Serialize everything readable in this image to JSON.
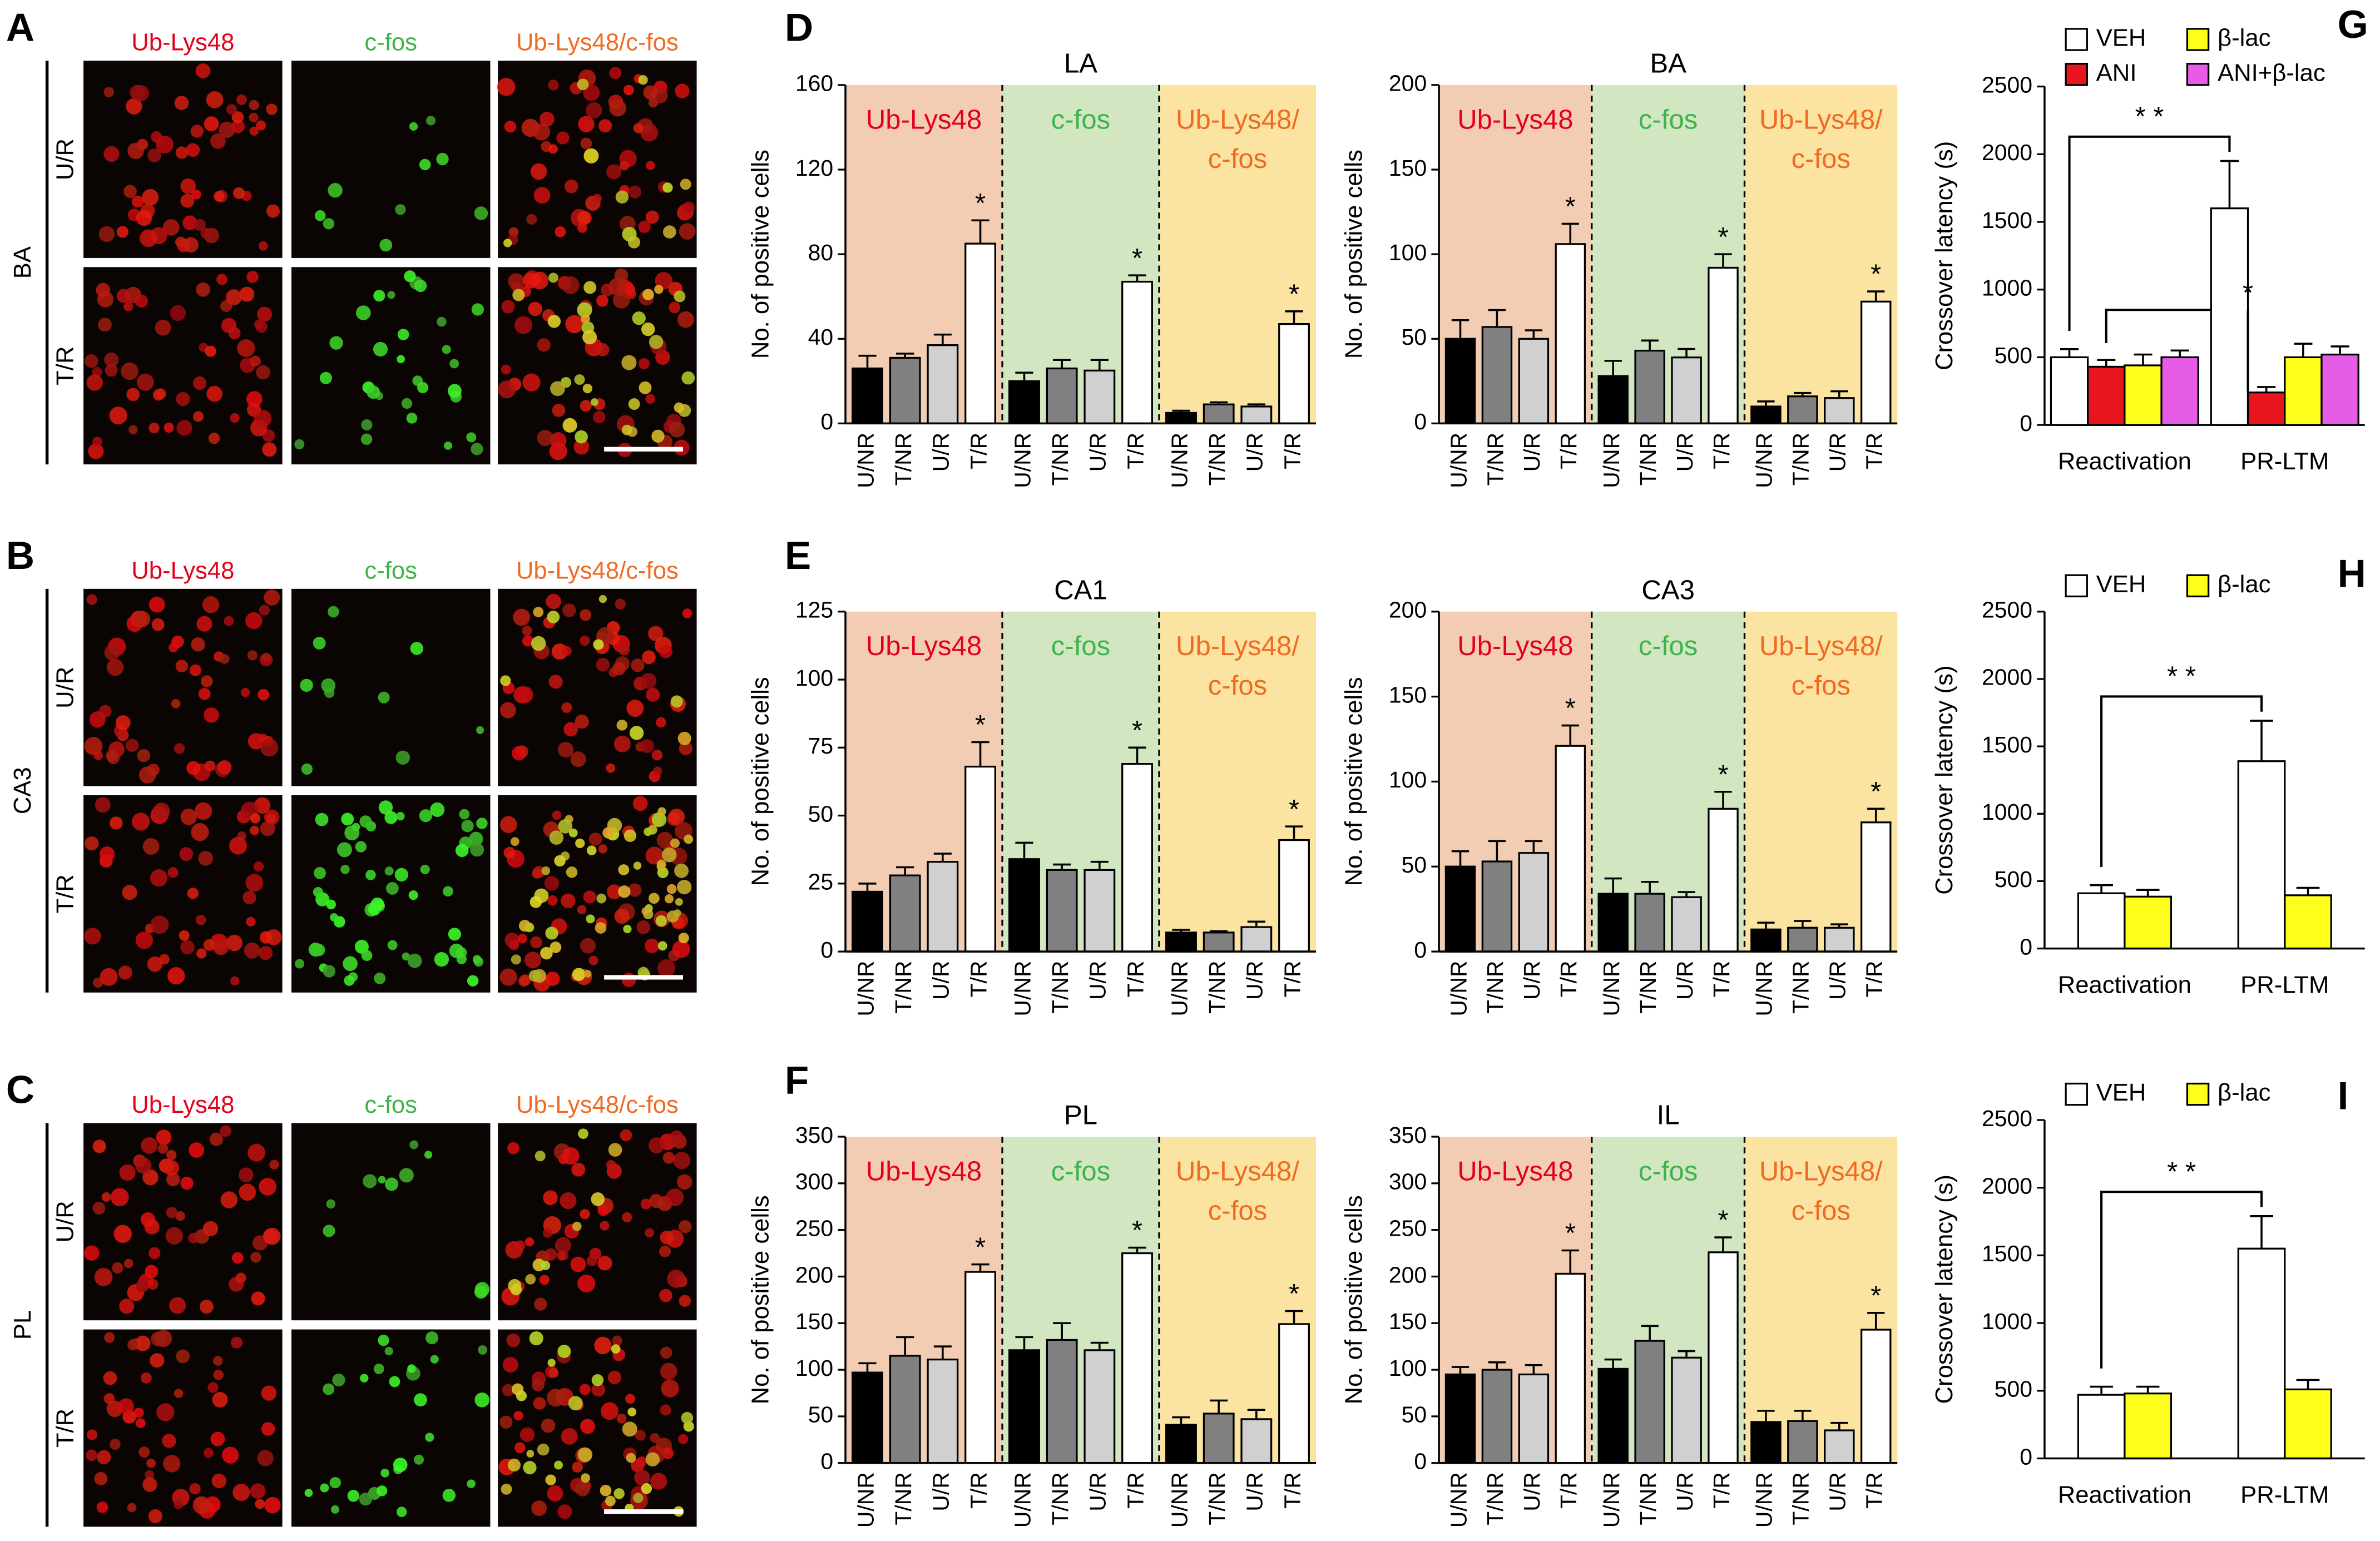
{
  "image_panels": [
    {
      "letter": "A",
      "region": "BA",
      "columns": [
        "Ub-Lys48",
        "c-fos",
        "Ub-Lys48/c-fos"
      ],
      "rows": [
        "U/R",
        "T/R"
      ]
    },
    {
      "letter": "B",
      "region": "CA3",
      "columns": [
        "Ub-Lys48",
        "c-fos",
        "Ub-Lys48/c-fos"
      ],
      "rows": [
        "U/R",
        "T/R"
      ]
    },
    {
      "letter": "C",
      "region": "PL",
      "columns": [
        "Ub-Lys48",
        "c-fos",
        "Ub-Lys48/c-fos"
      ],
      "rows": [
        "U/R",
        "T/R"
      ]
    }
  ],
  "chart_data": [
    {
      "type": "bar",
      "panel": "D",
      "title": "LA",
      "y_label": "No. of positive cells",
      "ylim": [
        0,
        160
      ],
      "yticks": [
        0,
        40,
        80,
        120,
        160
      ],
      "categories": [
        "U/NR",
        "T/NR",
        "U/R",
        "T/R"
      ],
      "bar_colors": [
        "#000000",
        "#808080",
        "#d0d0d0",
        "#ffffff"
      ],
      "groups": [
        {
          "name": [
            "Ub-Lys48"
          ],
          "color": "#e3001b",
          "background": "#f3cdb3",
          "values": [
            26,
            31,
            37,
            85
          ],
          "errors": [
            6,
            2,
            5,
            11
          ],
          "annotation": "*"
        },
        {
          "name": [
            "c-fos"
          ],
          "color": "#3cb44a",
          "background": "#d2e6c2",
          "values": [
            20,
            26,
            25,
            67
          ],
          "errors": [
            4,
            4,
            5,
            3
          ],
          "annotation": "*"
        },
        {
          "name": [
            "Ub-Lys48/",
            "c-fos"
          ],
          "color": "#f06a22",
          "background": "#fbe3a2",
          "values": [
            5,
            9,
            8,
            47
          ],
          "errors": [
            1,
            1,
            1,
            6
          ],
          "annotation": "*"
        }
      ]
    },
    {
      "type": "bar",
      "title": "BA",
      "y_label": "No. of positive cells",
      "ylim": [
        0,
        200
      ],
      "yticks": [
        0,
        50,
        100,
        150,
        200
      ],
      "categories": [
        "U/NR",
        "T/NR",
        "U/R",
        "T/R"
      ],
      "bar_colors": [
        "#000000",
        "#808080",
        "#d0d0d0",
        "#ffffff"
      ],
      "groups": [
        {
          "name": [
            "Ub-Lys48"
          ],
          "color": "#e3001b",
          "background": "#f3cdb3",
          "values": [
            50,
            57,
            50,
            106
          ],
          "errors": [
            11,
            10,
            5,
            12
          ],
          "annotation": "*"
        },
        {
          "name": [
            "c-fos"
          ],
          "color": "#3cb44a",
          "background": "#d2e6c2",
          "values": [
            28,
            43,
            39,
            92
          ],
          "errors": [
            9,
            6,
            5,
            8
          ],
          "annotation": "*"
        },
        {
          "name": [
            "Ub-Lys48/",
            "c-fos"
          ],
          "color": "#f06a22",
          "background": "#fbe3a2",
          "values": [
            10,
            16,
            15,
            72
          ],
          "errors": [
            3,
            2,
            4,
            6
          ],
          "annotation": "*"
        }
      ]
    },
    {
      "type": "bar",
      "panel": "E",
      "title": "CA1",
      "y_label": "No. of positive cells",
      "ylim": [
        0,
        125
      ],
      "yticks": [
        0,
        25,
        50,
        75,
        100,
        125
      ],
      "categories": [
        "U/NR",
        "T/NR",
        "U/R",
        "T/R"
      ],
      "bar_colors": [
        "#000000",
        "#808080",
        "#d0d0d0",
        "#ffffff"
      ],
      "groups": [
        {
          "name": [
            "Ub-Lys48"
          ],
          "color": "#e3001b",
          "background": "#f3cdb3",
          "values": [
            22,
            28,
            33,
            68
          ],
          "errors": [
            3,
            3,
            3,
            9
          ],
          "annotation": "*"
        },
        {
          "name": [
            "c-fos"
          ],
          "color": "#3cb44a",
          "background": "#d2e6c2",
          "values": [
            34,
            30,
            30,
            69
          ],
          "errors": [
            6,
            2,
            3,
            6
          ],
          "annotation": "*"
        },
        {
          "name": [
            "Ub-Lys48/",
            "c-fos"
          ],
          "color": "#f06a22",
          "background": "#fbe3a2",
          "values": [
            7,
            7,
            9,
            41
          ],
          "errors": [
            1,
            0.5,
            2,
            5
          ],
          "annotation": "*"
        }
      ]
    },
    {
      "type": "bar",
      "title": "CA3",
      "y_label": "No. of positive cells",
      "ylim": [
        0,
        200
      ],
      "yticks": [
        0,
        50,
        100,
        150,
        200
      ],
      "categories": [
        "U/NR",
        "T/NR",
        "U/R",
        "T/R"
      ],
      "bar_colors": [
        "#000000",
        "#808080",
        "#d0d0d0",
        "#ffffff"
      ],
      "groups": [
        {
          "name": [
            "Ub-Lys48"
          ],
          "color": "#e3001b",
          "background": "#f3cdb3",
          "values": [
            50,
            53,
            58,
            121
          ],
          "errors": [
            9,
            12,
            7,
            12
          ],
          "annotation": "*"
        },
        {
          "name": [
            "c-fos"
          ],
          "color": "#3cb44a",
          "background": "#d2e6c2",
          "values": [
            34,
            34,
            32,
            84
          ],
          "errors": [
            9,
            7,
            3,
            10
          ],
          "annotation": "*"
        },
        {
          "name": [
            "Ub-Lys48/",
            "c-fos"
          ],
          "color": "#f06a22",
          "background": "#fbe3a2",
          "values": [
            13,
            14,
            14,
            76
          ],
          "errors": [
            4,
            4,
            2,
            8
          ],
          "annotation": "*"
        }
      ]
    },
    {
      "type": "bar",
      "panel": "F",
      "title": "PL",
      "y_label": "No. of positive cells",
      "ylim": [
        0,
        350
      ],
      "yticks": [
        0,
        50,
        100,
        150,
        200,
        250,
        300,
        350
      ],
      "categories": [
        "U/NR",
        "T/NR",
        "U/R",
        "T/R"
      ],
      "bar_colors": [
        "#000000",
        "#808080",
        "#d0d0d0",
        "#ffffff"
      ],
      "groups": [
        {
          "name": [
            "Ub-Lys48"
          ],
          "color": "#e3001b",
          "background": "#f3cdb3",
          "values": [
            97,
            115,
            111,
            205
          ],
          "errors": [
            10,
            20,
            14,
            8
          ],
          "annotation": "*"
        },
        {
          "name": [
            "c-fos"
          ],
          "color": "#3cb44a",
          "background": "#d2e6c2",
          "values": [
            121,
            132,
            121,
            225
          ],
          "errors": [
            14,
            18,
            8,
            6
          ],
          "annotation": "*"
        },
        {
          "name": [
            "Ub-Lys48/",
            "c-fos"
          ],
          "color": "#f06a22",
          "background": "#fbe3a2",
          "values": [
            41,
            53,
            47,
            149
          ],
          "errors": [
            8,
            14,
            10,
            14
          ],
          "annotation": "*"
        }
      ]
    },
    {
      "type": "bar",
      "title": "IL",
      "y_label": "No. of positive cells",
      "ylim": [
        0,
        350
      ],
      "yticks": [
        0,
        50,
        100,
        150,
        200,
        250,
        300,
        350
      ],
      "categories": [
        "U/NR",
        "T/NR",
        "U/R",
        "T/R"
      ],
      "bar_colors": [
        "#000000",
        "#808080",
        "#d0d0d0",
        "#ffffff"
      ],
      "groups": [
        {
          "name": [
            "Ub-Lys48"
          ],
          "color": "#e3001b",
          "background": "#f3cdb3",
          "values": [
            95,
            100,
            95,
            203
          ],
          "errors": [
            8,
            8,
            10,
            25
          ],
          "annotation": "*"
        },
        {
          "name": [
            "c-fos"
          ],
          "color": "#3cb44a",
          "background": "#d2e6c2",
          "values": [
            101,
            131,
            113,
            226
          ],
          "errors": [
            10,
            16,
            7,
            16
          ],
          "annotation": "*"
        },
        {
          "name": [
            "Ub-Lys48/",
            "c-fos"
          ],
          "color": "#f06a22",
          "background": "#fbe3a2",
          "values": [
            44,
            45,
            35,
            143
          ],
          "errors": [
            12,
            11,
            8,
            18
          ],
          "annotation": "*"
        }
      ]
    },
    {
      "type": "grouped_bar",
      "panel": "G",
      "y_label": "Crossover latency (s)",
      "ylim": [
        0,
        2500
      ],
      "yticks": [
        0,
        500,
        1000,
        1500,
        2000,
        2500
      ],
      "categories": [
        "Reactivation",
        "PR-LTM"
      ],
      "series": [
        {
          "name": "VEH",
          "color": "#ffffff",
          "values": [
            500,
            1600
          ],
          "errors": [
            60,
            350
          ]
        },
        {
          "name": "ANI",
          "color": "#e8141e",
          "values": [
            430,
            240
          ],
          "errors": [
            50,
            40
          ]
        },
        {
          "name": "β-lac",
          "color": "#ffff1e",
          "values": [
            440,
            500
          ],
          "errors": [
            80,
            100
          ]
        },
        {
          "name": "ANI+β-lac",
          "color": "#e65ce6",
          "values": [
            500,
            520
          ],
          "errors": [
            50,
            60
          ]
        }
      ],
      "annotations": [
        "* *",
        "*"
      ]
    },
    {
      "type": "grouped_bar",
      "panel": "H",
      "y_label": "Crossover latency (s)",
      "ylim": [
        0,
        2500
      ],
      "yticks": [
        0,
        500,
        1000,
        1500,
        2000,
        2500
      ],
      "categories": [
        "Reactivation",
        "PR-LTM"
      ],
      "series": [
        {
          "name": "VEH",
          "color": "#ffffff",
          "values": [
            410,
            1390
          ],
          "errors": [
            60,
            300
          ]
        },
        {
          "name": "β-lac",
          "color": "#ffff1e",
          "values": [
            385,
            395
          ],
          "errors": [
            50,
            55
          ]
        }
      ],
      "annotations": [
        "* *"
      ]
    },
    {
      "type": "grouped_bar",
      "panel": "I",
      "y_label": "Crossover latency (s)",
      "ylim": [
        0,
        2500
      ],
      "yticks": [
        0,
        500,
        1000,
        1500,
        2000,
        2500
      ],
      "categories": [
        "Reactivation",
        "PR-LTM"
      ],
      "series": [
        {
          "name": "VEH",
          "color": "#ffffff",
          "values": [
            470,
            1550
          ],
          "errors": [
            60,
            240
          ]
        },
        {
          "name": "β-lac",
          "color": "#ffff1e",
          "values": [
            480,
            510
          ],
          "errors": [
            50,
            70
          ]
        }
      ],
      "annotations": [
        "* *"
      ]
    }
  ]
}
